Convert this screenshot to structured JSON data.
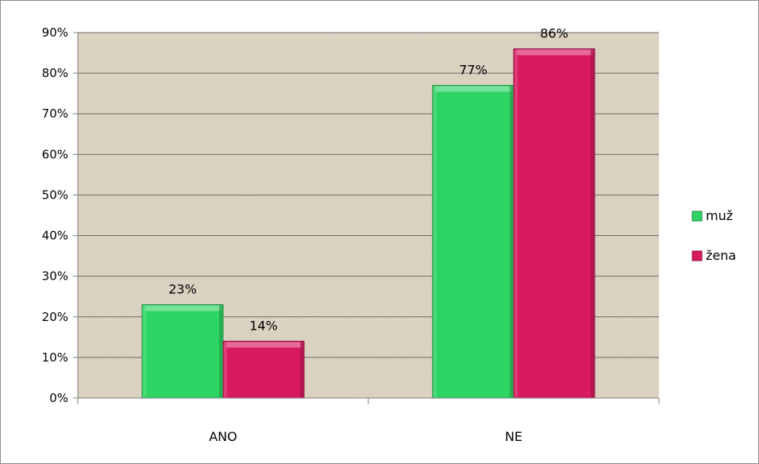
{
  "chart_data": {
    "type": "bar",
    "categories": [
      "ANO",
      "NE"
    ],
    "series": [
      {
        "name": "muž",
        "values": [
          23,
          77
        ],
        "color": "#2ed463"
      },
      {
        "name": "žena",
        "values": [
          14,
          86
        ],
        "color": "#d81b60"
      }
    ],
    "data_labels": [
      [
        "23%",
        "77%"
      ],
      [
        "14%",
        "86%"
      ]
    ],
    "yticks": [
      "0%",
      "10%",
      "20%",
      "30%",
      "40%",
      "50%",
      "60%",
      "70%",
      "80%",
      "90%"
    ],
    "ylim": [
      0,
      90
    ],
    "ytick_step": 10,
    "grid": true,
    "legend": "right",
    "plot_background": "#ddd4c3"
  }
}
